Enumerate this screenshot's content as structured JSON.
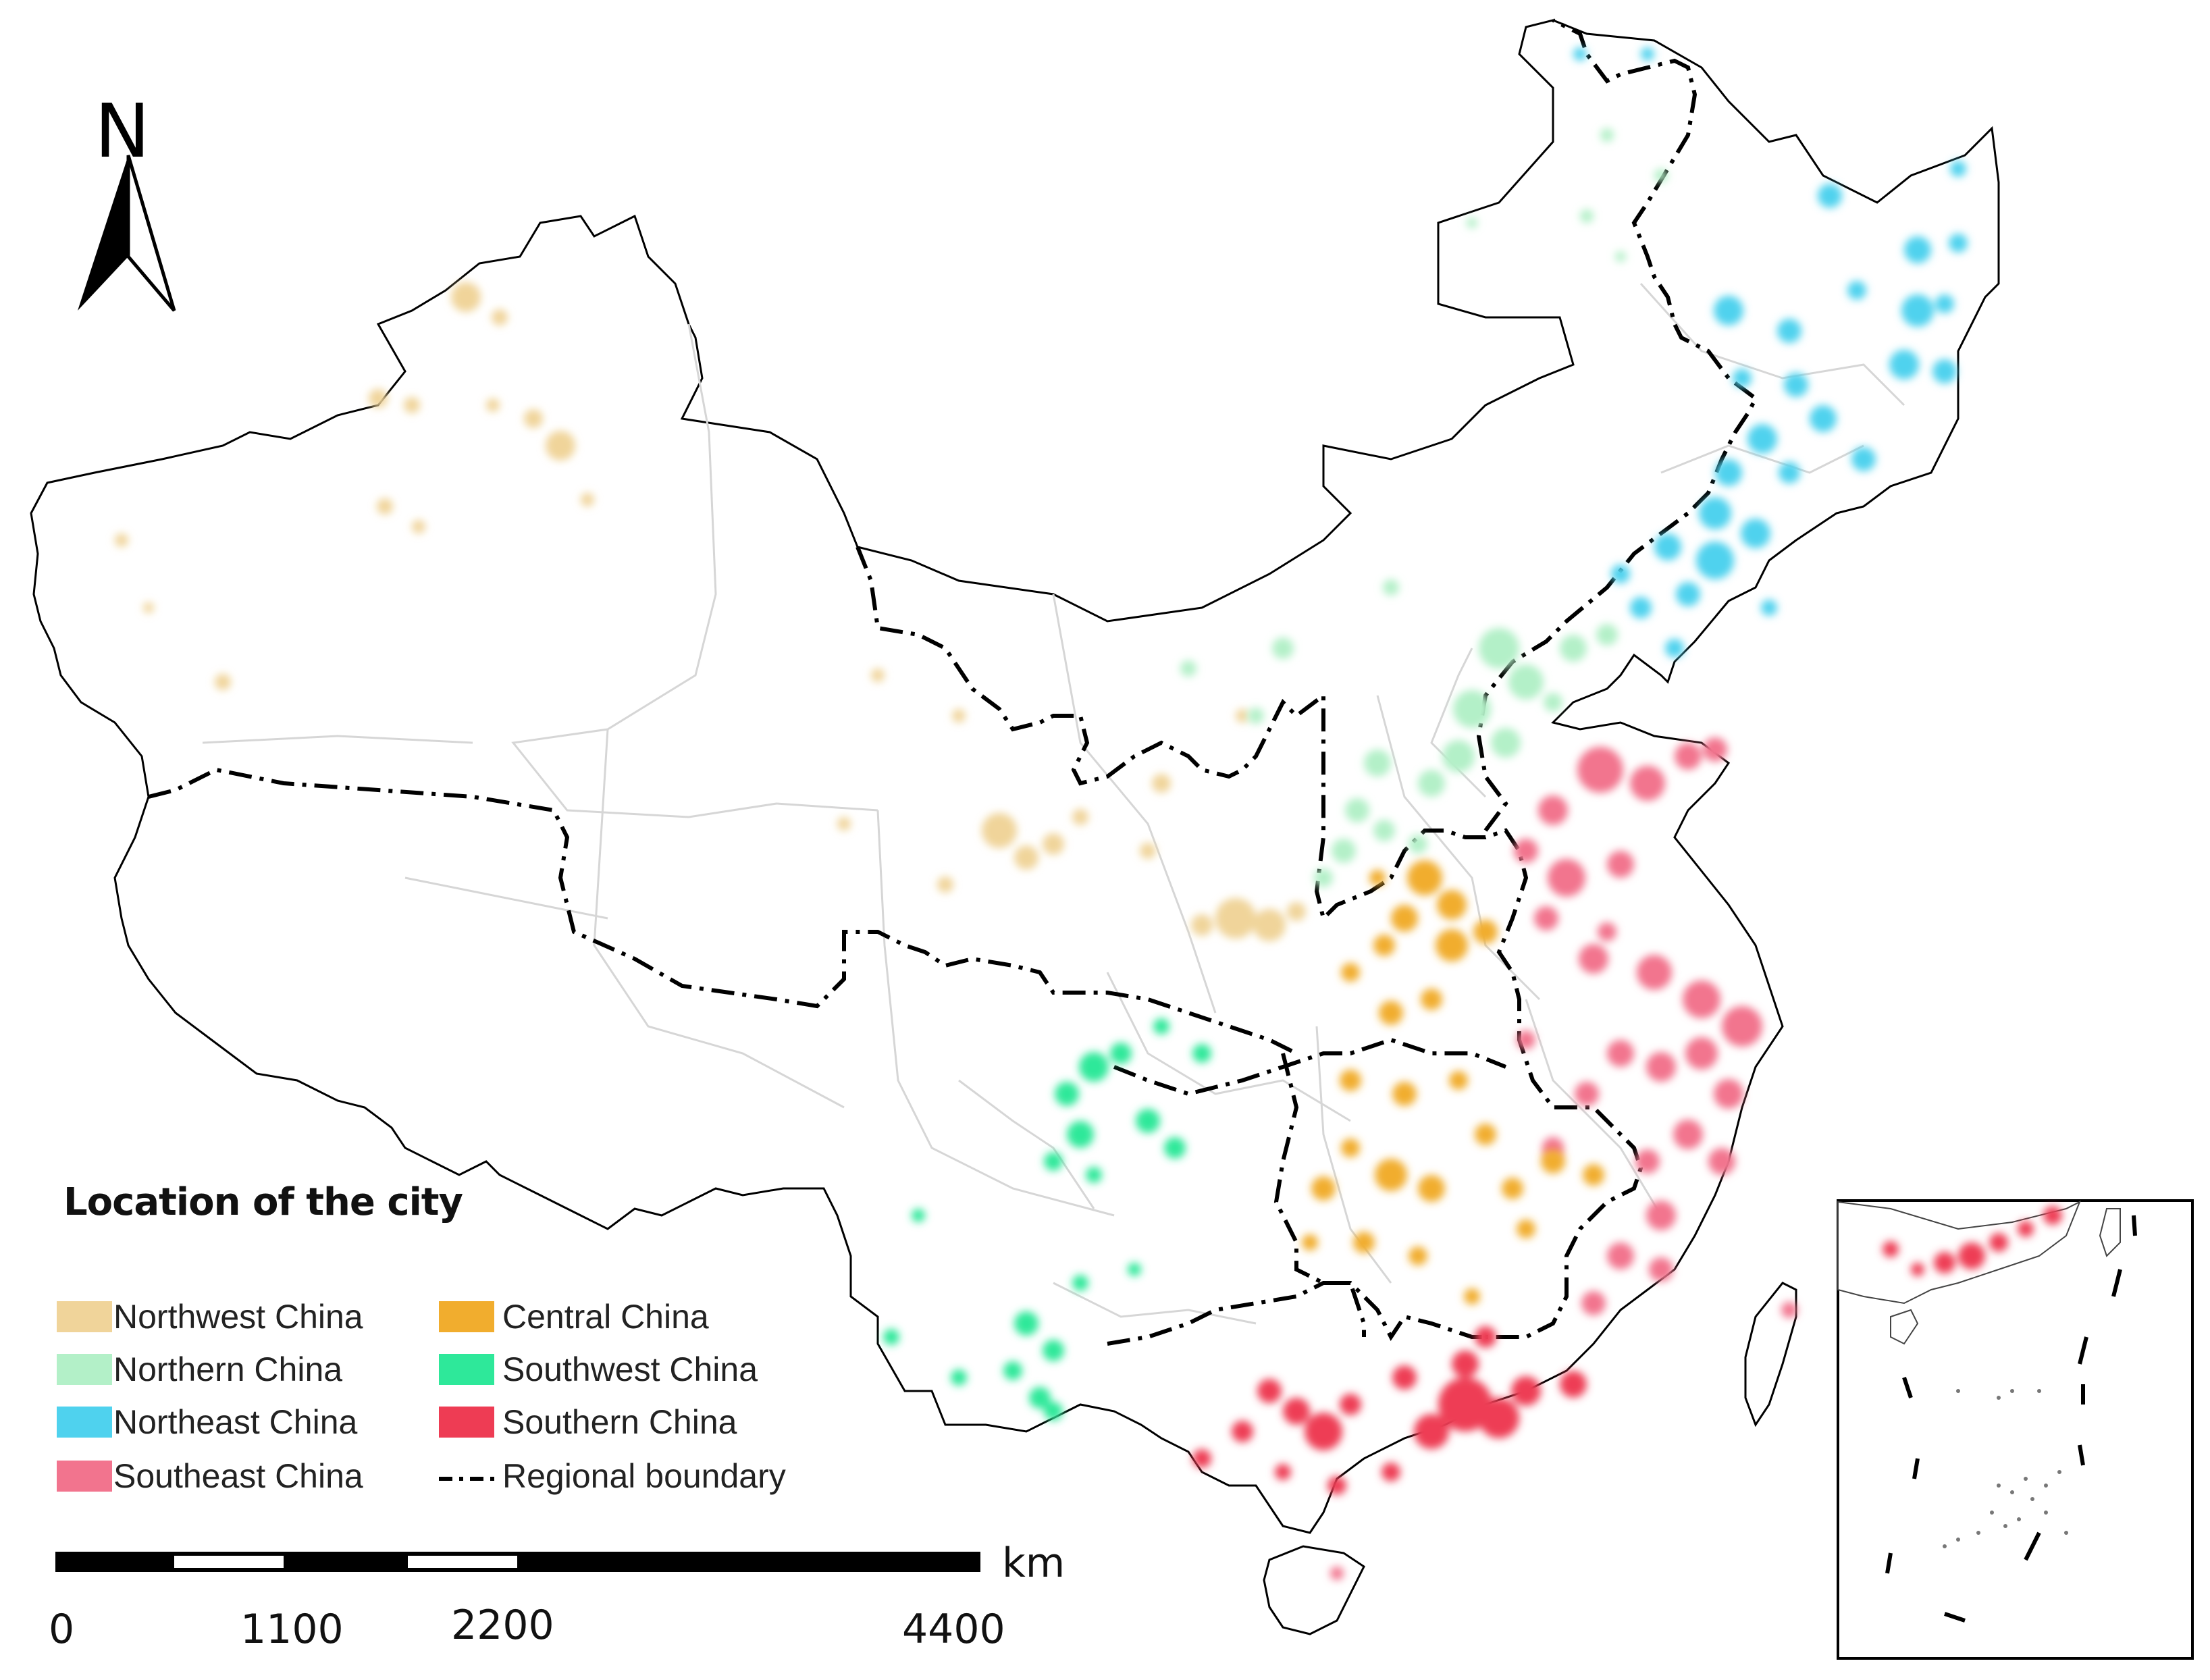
{
  "legend": {
    "title": "Location of the city",
    "items": [
      {
        "label": "Northwest China",
        "color": "#f0d49a"
      },
      {
        "label": "Northern China",
        "color": "#b3f0c8"
      },
      {
        "label": "Northeast China",
        "color": "#4fd2ee"
      },
      {
        "label": "Southeast China",
        "color": "#f2748e"
      },
      {
        "label": "Central China",
        "color": "#f1ad2e"
      },
      {
        "label": "Southwest China",
        "color": "#2ee89a"
      },
      {
        "label": "Southern China",
        "color": "#ee3c54"
      },
      {
        "label": "Regional boundary",
        "line_style": "dash-dot",
        "color": "#000000"
      }
    ]
  },
  "north_arrow": {
    "label": "N",
    "icon": "north-arrow-icon"
  },
  "scale_bar": {
    "unit": "km",
    "ticks": [
      "0",
      "1100",
      "2200",
      "4400"
    ]
  },
  "inset": {
    "description_icon": "south-china-sea-inset"
  }
}
